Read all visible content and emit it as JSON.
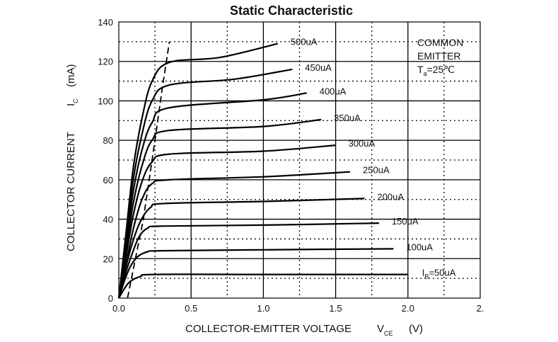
{
  "chart_data": {
    "type": "line",
    "title": "Static Characteristic",
    "xlabel": {
      "main": "COLLECTOR-EMITTER VOLTAGE",
      "symbol": "V",
      "subscript": "CE",
      "unit": "(V)"
    },
    "ylabel": {
      "main": "COLLECTOR CURRENT",
      "symbol": "I",
      "subscript": "C",
      "unit": "(mA)"
    },
    "xlim": [
      0,
      2.5
    ],
    "ylim": [
      0,
      140
    ],
    "x_ticks": [
      "0.0",
      "0.5",
      "1.0",
      "1.5",
      "2.0",
      "2."
    ],
    "y_ticks": [
      "0",
      "20",
      "40",
      "60",
      "80",
      "100",
      "120",
      "140"
    ],
    "grid": true,
    "annotation": {
      "line1": "COMMON",
      "line2": "EMITTER",
      "temp_prefix": "T",
      "temp_sub": "a",
      "temp_value": "=25℃"
    },
    "ib_prefix": "I",
    "ib_sub": "B",
    "series": [
      {
        "name": "=50uA",
        "points": [
          [
            0,
            0
          ],
          [
            0.04,
            5
          ],
          [
            0.08,
            8.5
          ],
          [
            0.15,
            11
          ],
          [
            0.25,
            12
          ],
          [
            1.0,
            12
          ],
          [
            2.0,
            12
          ]
        ]
      },
      {
        "name": "100uA",
        "points": [
          [
            0,
            0
          ],
          [
            0.04,
            9
          ],
          [
            0.08,
            16
          ],
          [
            0.13,
            21
          ],
          [
            0.2,
            23.5
          ],
          [
            0.3,
            24
          ],
          [
            1.0,
            24.5
          ],
          [
            1.9,
            25
          ]
        ]
      },
      {
        "name": "150uA",
        "points": [
          [
            0,
            0
          ],
          [
            0.04,
            11
          ],
          [
            0.09,
            22
          ],
          [
            0.14,
            31
          ],
          [
            0.2,
            35.5
          ],
          [
            0.3,
            36.5
          ],
          [
            1.0,
            37
          ],
          [
            1.8,
            38
          ]
        ]
      },
      {
        "name": "200uA",
        "points": [
          [
            0,
            0
          ],
          [
            0.04,
            13
          ],
          [
            0.09,
            27
          ],
          [
            0.15,
            39
          ],
          [
            0.22,
            46
          ],
          [
            0.32,
            48
          ],
          [
            1.0,
            49
          ],
          [
            1.7,
            50.5
          ]
        ]
      },
      {
        "name": "250uA",
        "points": [
          [
            0,
            0
          ],
          [
            0.05,
            17
          ],
          [
            0.1,
            35
          ],
          [
            0.16,
            50
          ],
          [
            0.23,
            58
          ],
          [
            0.35,
            60
          ],
          [
            1.0,
            61.5
          ],
          [
            1.6,
            64
          ]
        ]
      },
      {
        "name": "300uA",
        "points": [
          [
            0,
            0
          ],
          [
            0.05,
            21
          ],
          [
            0.1,
            42
          ],
          [
            0.16,
            59
          ],
          [
            0.23,
            69
          ],
          [
            0.35,
            73
          ],
          [
            1.0,
            74.5
          ],
          [
            1.5,
            77.5
          ]
        ]
      },
      {
        "name": "350uA",
        "points": [
          [
            0,
            0
          ],
          [
            0.05,
            24
          ],
          [
            0.1,
            48
          ],
          [
            0.16,
            67
          ],
          [
            0.23,
            80
          ],
          [
            0.35,
            85
          ],
          [
            1.0,
            87
          ],
          [
            1.4,
            90.5
          ]
        ]
      },
      {
        "name": "400uA",
        "points": [
          [
            0,
            0
          ],
          [
            0.05,
            27
          ],
          [
            0.1,
            54
          ],
          [
            0.16,
            75
          ],
          [
            0.23,
            89
          ],
          [
            0.35,
            96.5
          ],
          [
            1.0,
            100.5
          ],
          [
            1.3,
            104
          ]
        ]
      },
      {
        "name": "450uA",
        "points": [
          [
            0,
            0
          ],
          [
            0.05,
            30
          ],
          [
            0.1,
            60
          ],
          [
            0.16,
            83
          ],
          [
            0.23,
            100
          ],
          [
            0.35,
            108
          ],
          [
            0.8,
            111
          ],
          [
            1.2,
            116
          ]
        ]
      },
      {
        "name": "500uA",
        "points": [
          [
            0,
            0
          ],
          [
            0.05,
            33
          ],
          [
            0.1,
            66
          ],
          [
            0.16,
            91
          ],
          [
            0.23,
            110
          ],
          [
            0.35,
            119.5
          ],
          [
            0.7,
            122
          ],
          [
            1.1,
            129
          ]
        ]
      }
    ],
    "saturation_line": {
      "points": [
        [
          0.06,
          0
        ],
        [
          0.17,
          40
        ],
        [
          0.25,
          80
        ],
        [
          0.3,
          106
        ],
        [
          0.35,
          130
        ]
      ]
    }
  }
}
